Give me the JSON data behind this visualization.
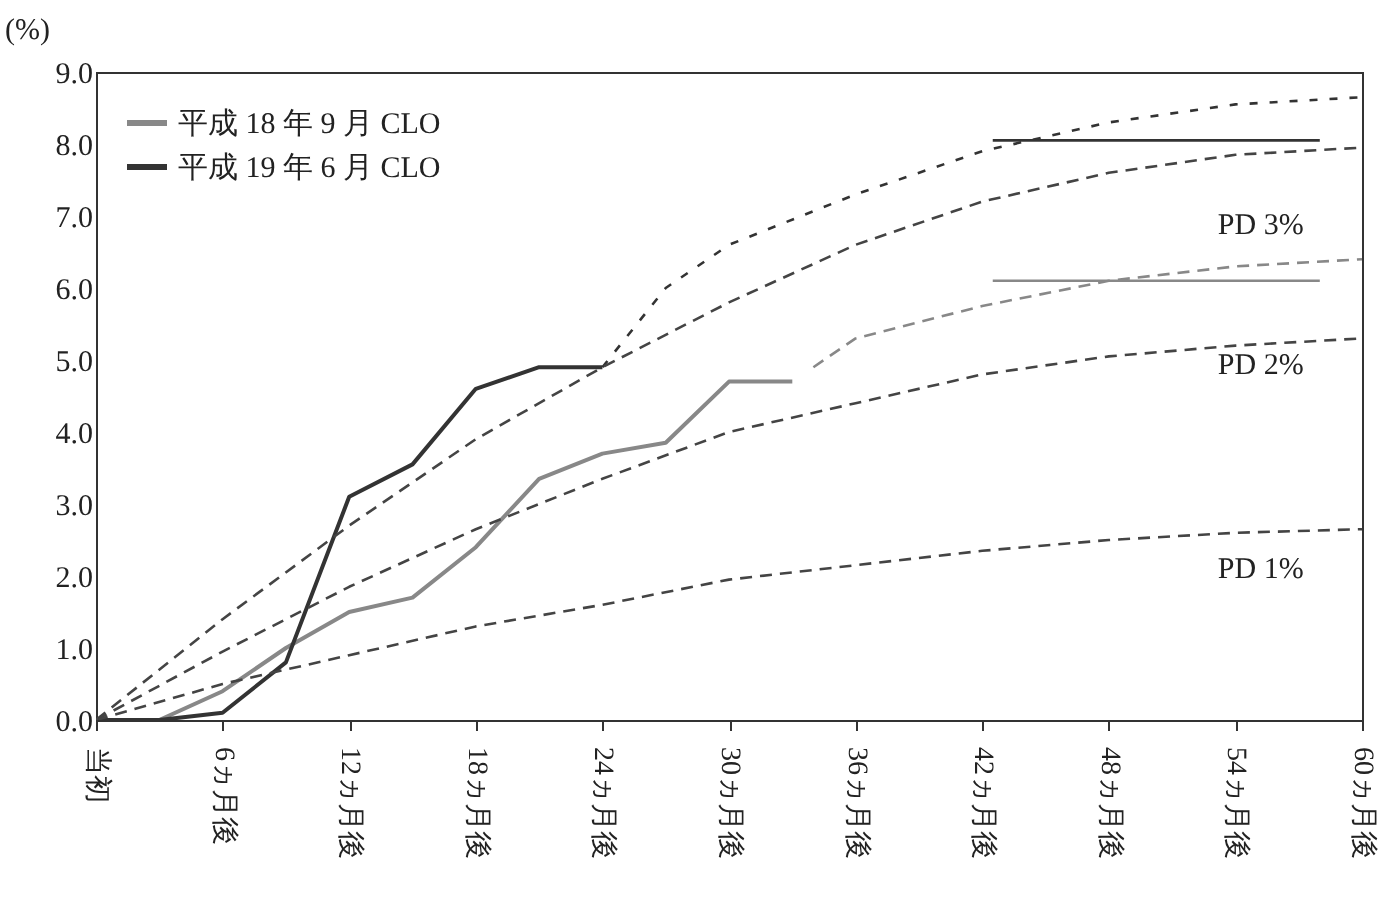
{
  "chart_data": {
    "type": "line",
    "ylabel": "(%)",
    "xlim": [
      0,
      60
    ],
    "ylim": [
      0,
      9
    ],
    "xticks": [
      {
        "value": 0,
        "label": "当初"
      },
      {
        "value": 6,
        "label": "6ヵ月後"
      },
      {
        "value": 12,
        "label": "12ヵ月後"
      },
      {
        "value": 18,
        "label": "18ヵ月後"
      },
      {
        "value": 24,
        "label": "24ヵ月後"
      },
      {
        "value": 30,
        "label": "30ヵ月後"
      },
      {
        "value": 36,
        "label": "36ヵ月後"
      },
      {
        "value": 42,
        "label": "42ヵ月後"
      },
      {
        "value": 48,
        "label": "48ヵ月後"
      },
      {
        "value": 54,
        "label": "54ヵ月後"
      },
      {
        "value": 60,
        "label": "60ヵ月後"
      }
    ],
    "yticks": [
      {
        "value": 0,
        "label": "0.0"
      },
      {
        "value": 1,
        "label": "1.0"
      },
      {
        "value": 2,
        "label": "2.0"
      },
      {
        "value": 3,
        "label": "3.0"
      },
      {
        "value": 4,
        "label": "4.0"
      },
      {
        "value": 5,
        "label": "5.0"
      },
      {
        "value": 6,
        "label": "6.0"
      },
      {
        "value": 7,
        "label": "7.0"
      },
      {
        "value": 8,
        "label": "8.0"
      },
      {
        "value": 9,
        "label": "9.0"
      }
    ],
    "grid": false,
    "legend": "top left",
    "series": [
      {
        "name": "平成 18 年 9 月 CLO",
        "color": "#888888",
        "line_style": "solid",
        "x": [
          0,
          3,
          6,
          9,
          12,
          15,
          18,
          21,
          24,
          27,
          30,
          33
        ],
        "values": [
          0,
          0,
          0.4,
          1.0,
          1.5,
          1.7,
          2.4,
          3.35,
          3.7,
          3.85,
          4.7,
          4.7
        ]
      },
      {
        "name": "平成 19 年 6 月 CLO",
        "color": "#333333",
        "line_style": "solid",
        "x": [
          0,
          3,
          6,
          9,
          12,
          15,
          18,
          21,
          24
        ],
        "values": [
          0,
          0,
          0.1,
          0.8,
          3.1,
          3.55,
          4.6,
          4.9,
          4.9
        ]
      },
      {
        "color": "#888888",
        "line_style": "dashed",
        "x": [
          34,
          36,
          42,
          48,
          54,
          60
        ],
        "values": [
          4.9,
          5.3,
          5.75,
          6.1,
          6.3,
          6.4
        ]
      },
      {
        "color": "#333333",
        "line_style": "dotted",
        "x": [
          24,
          27,
          30,
          36,
          42,
          48,
          54,
          60
        ],
        "values": [
          4.9,
          6.0,
          6.6,
          7.3,
          7.9,
          8.3,
          8.55,
          8.65
        ]
      },
      {
        "color": "#888888",
        "line_style": "solid",
        "x": [
          42.5,
          58
        ],
        "values": [
          6.1,
          6.1
        ]
      },
      {
        "color": "#333333",
        "line_style": "solid",
        "x": [
          42.5,
          58
        ],
        "values": [
          8.05,
          8.05
        ]
      },
      {
        "color": "#444444",
        "line_style": "dashed",
        "x": [
          0,
          6,
          12,
          18,
          24,
          30,
          36,
          42,
          48,
          54,
          60
        ],
        "values": [
          0,
          1.4,
          2.7,
          3.9,
          4.9,
          5.8,
          6.6,
          7.2,
          7.6,
          7.85,
          7.95
        ]
      },
      {
        "color": "#444444",
        "line_style": "dashed",
        "x": [
          0,
          6,
          12,
          18,
          24,
          30,
          36,
          42,
          48,
          54,
          60
        ],
        "values": [
          0,
          0.95,
          1.85,
          2.65,
          3.35,
          4.0,
          4.4,
          4.8,
          5.05,
          5.2,
          5.3
        ]
      },
      {
        "color": "#444444",
        "line_style": "dashed",
        "x": [
          0,
          6,
          12,
          18,
          24,
          30,
          36,
          42,
          48,
          54,
          60
        ],
        "values": [
          0,
          0.5,
          0.9,
          1.3,
          1.6,
          1.95,
          2.15,
          2.35,
          2.5,
          2.6,
          2.65
        ]
      }
    ],
    "annotations": [
      "PD 3%",
      "PD 2%",
      "PD 1%"
    ]
  }
}
